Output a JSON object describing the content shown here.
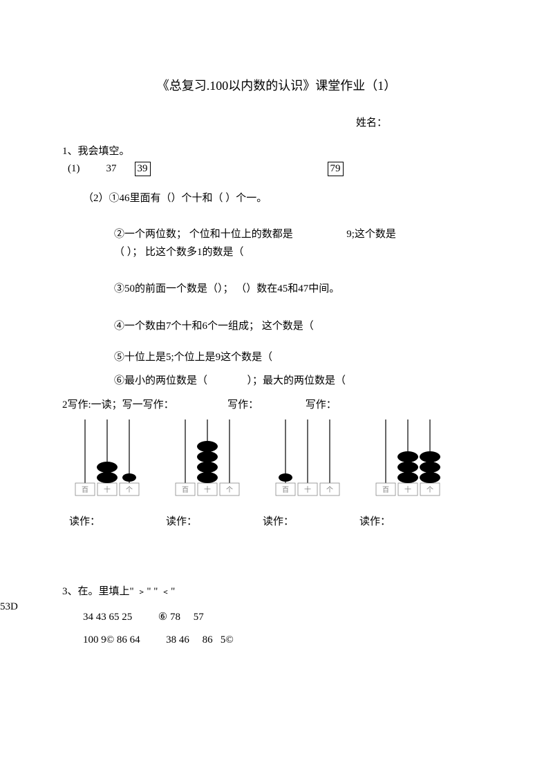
{
  "title": "《总复习.100以内数的认识》课堂作业（1）",
  "name_label": "姓名：",
  "q1": {
    "header": "1、我会填空。",
    "part1_label": "(1)",
    "num_a": "37",
    "num_b": "39",
    "num_c": "79",
    "part2_1": "（2）①46里面有（）个十和（ ）个一。",
    "part2_2a": "②一个两位数； 个位和十位上的数都是",
    "part2_2a_tail": "9;这个数是",
    "part2_2b": "（ ）； 比这个数多1的数是（",
    "part2_3": "③50的前面一个数是（）； （）数在45和47中间。",
    "part2_4": "④一个数由7个十和6个一组成； 这个数是（",
    "part2_5": "⑤十位上是5;个位上是9这个数是（",
    "part2_6a": "⑥最小的两位数是（",
    "part2_6b": "）；最大的两位数是（"
  },
  "q2": {
    "header_mix": "2写作:一读；写一写作：",
    "w1": "",
    "w2": "",
    "w3": "写作：",
    "w4": "写作：",
    "read": "读作：",
    "place_labels": [
      "百",
      "十",
      "个"
    ],
    "abacus": [
      {
        "beads": [
          0,
          2,
          1
        ],
        "bead_kind": [
          "none",
          "big",
          "small"
        ]
      },
      {
        "beads": [
          0,
          4,
          0
        ],
        "bead_kind": [
          "none",
          "big",
          "none"
        ]
      },
      {
        "beads": [
          1,
          0,
          0
        ],
        "bead_kind": [
          "small",
          "none",
          "none"
        ]
      },
      {
        "beads": [
          0,
          3,
          3
        ],
        "bead_kind": [
          "none",
          "big",
          "big"
        ]
      }
    ]
  },
  "q3": {
    "header": "3、在。里填上\" ﹥\"   \" ﹤\"",
    "row1": "34 43 65 25          ⑥ 78     57",
    "row2": "100 9© 86 64          38 46     86   5©"
  },
  "side": "53D",
  "style": {
    "bead_color": "#000000",
    "box_stroke": "#888888",
    "label_color": "#808080"
  }
}
